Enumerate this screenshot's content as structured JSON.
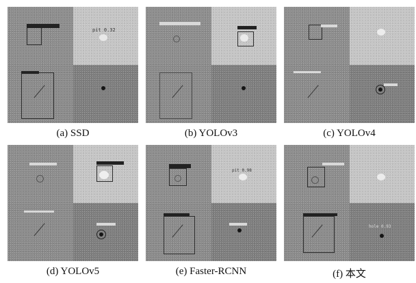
{
  "figure": {
    "panels": [
      {
        "caption": "(a) SSD",
        "det_text": "pit 0.32"
      },
      {
        "caption": "(b) YOLOv3",
        "det_text": ""
      },
      {
        "caption": "(c) YOLOv4",
        "det_text": ""
      },
      {
        "caption": "(d) YOLOv5",
        "det_text": ""
      },
      {
        "caption": "(e) Faster-RCNN",
        "det_text": "pit 0.98"
      },
      {
        "caption": "(f) 本文",
        "det_text": "hole 0.93"
      }
    ]
  }
}
